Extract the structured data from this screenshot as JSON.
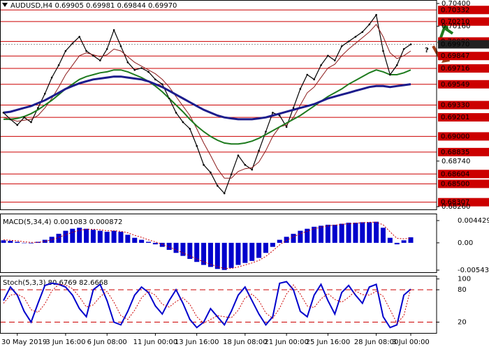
{
  "chart_data": [
    {
      "type": "line",
      "title": "AUDUSD,H4  0.69905 0.69981 0.69844 0.69970",
      "categories": [
        null,
        null,
        "30 May 2019",
        null,
        null,
        null,
        null,
        null,
        null,
        "3 Jun 16:00",
        null,
        null,
        null,
        null,
        null,
        "6 Jun 08:00",
        null,
        null,
        null,
        null,
        null,
        null,
        "11 Jun 00:00",
        null,
        null,
        null,
        null,
        null,
        "13 Jun 16:00",
        null,
        null,
        null,
        null,
        null,
        null,
        "18 Jun 08:00",
        null,
        null,
        null,
        null,
        null,
        "21 Jun 00:00",
        null,
        null,
        null,
        null,
        null,
        "25 Jun 16:00",
        null,
        null,
        null,
        null,
        null,
        null,
        "28 Jun 08:00",
        null,
        null,
        null,
        null,
        "3 Jul 00:00"
      ],
      "ylim": [
        0.68231,
        0.70437
      ],
      "yticks": [
        {
          "value": 0.704,
          "label": "0.70400"
        },
        {
          "value": 0.7016,
          "label": "0.70160"
        },
        {
          "value": 0.6874,
          "label": "0.68740"
        },
        {
          "value": 0.6826,
          "label": "0.68260"
        }
      ],
      "levels": [
        {
          "value": 0.70332,
          "label": "0.70332"
        },
        {
          "value": 0.7021,
          "label": "0.70210"
        },
        {
          "value": 0.7,
          "label": "0.70000"
        },
        {
          "value": 0.69847,
          "label": "0.69847"
        },
        {
          "value": 0.69716,
          "label": "0.69716"
        },
        {
          "value": 0.69549,
          "label": "0.69549"
        },
        {
          "value": 0.6933,
          "label": "0.69330"
        },
        {
          "value": 0.69201,
          "label": "0.69201"
        },
        {
          "value": 0.69,
          "label": "0.69000"
        },
        {
          "value": 0.68835,
          "label": "0.68835"
        },
        {
          "value": 0.68604,
          "label": "0.68604"
        },
        {
          "value": 0.685,
          "label": "0.68500"
        },
        {
          "value": 0.68307,
          "label": "0.68307"
        }
      ],
      "level_color": "#cc0000",
      "last_price": {
        "value": 0.6997,
        "label": "0.69970"
      },
      "annotations": [
        "?"
      ],
      "series": [
        {
          "color": "#000000",
          "values": [
            0.6925,
            0.6918,
            0.6912,
            0.692,
            0.6915,
            0.693,
            0.6945,
            0.6962,
            0.6975,
            0.699,
            0.6998,
            0.7005,
            0.699,
            0.6985,
            0.698,
            0.6992,
            0.7012,
            0.6995,
            0.6978,
            0.697,
            0.6972,
            0.6968,
            0.696,
            0.6955,
            0.694,
            0.6925,
            0.6915,
            0.6908,
            0.689,
            0.687,
            0.6862,
            0.6848,
            0.684,
            0.686,
            0.688,
            0.687,
            0.6865,
            0.6885,
            0.6905,
            0.6925,
            0.6922,
            0.691,
            0.693,
            0.695,
            0.6965,
            0.696,
            0.6975,
            0.6985,
            0.698,
            0.6995,
            0.7,
            0.7005,
            0.701,
            0.7018,
            0.7028,
            0.699,
            0.6965,
            0.6975,
            0.6992,
            0.6997
          ]
        },
        {
          "color": "#8b1a1a",
          "values": [
            0.692,
            0.6918,
            0.6916,
            0.6917,
            0.6918,
            0.6922,
            0.693,
            0.694,
            0.6952,
            0.6965,
            0.6975,
            0.6985,
            0.6988,
            0.6986,
            0.6984,
            0.6986,
            0.6992,
            0.699,
            0.6984,
            0.6978,
            0.6974,
            0.697,
            0.6966,
            0.696,
            0.6952,
            0.6942,
            0.6932,
            0.6922,
            0.6908,
            0.6893,
            0.688,
            0.6866,
            0.6856,
            0.6856,
            0.6863,
            0.6866,
            0.6867,
            0.6873,
            0.6885,
            0.69,
            0.691,
            0.6912,
            0.692,
            0.6933,
            0.6946,
            0.6952,
            0.6962,
            0.6972,
            0.6976,
            0.6985,
            0.6992,
            0.6998,
            0.7004,
            0.701,
            0.7018,
            0.7005,
            0.6988,
            0.6982,
            0.6985,
            0.699
          ]
        },
        {
          "color": "#1e7b1e",
          "values": [
            0.6918,
            0.6918,
            0.6919,
            0.6921,
            0.6924,
            0.6928,
            0.6933,
            0.6938,
            0.6944,
            0.695,
            0.6955,
            0.696,
            0.6963,
            0.6965,
            0.6967,
            0.6968,
            0.697,
            0.697,
            0.6968,
            0.6965,
            0.6962,
            0.6958,
            0.6953,
            0.6947,
            0.694,
            0.6933,
            0.6926,
            0.6918,
            0.6911,
            0.6905,
            0.69,
            0.6896,
            0.6893,
            0.6892,
            0.6892,
            0.6893,
            0.6895,
            0.6898,
            0.6902,
            0.6906,
            0.691,
            0.6914,
            0.6918,
            0.6922,
            0.6927,
            0.6932,
            0.6937,
            0.6942,
            0.6946,
            0.695,
            0.6955,
            0.6959,
            0.6963,
            0.6967,
            0.697,
            0.6968,
            0.6965,
            0.6965,
            0.6967,
            0.697
          ]
        },
        {
          "color": "#1c1c8c",
          "values": [
            0.6925,
            0.6926,
            0.6928,
            0.693,
            0.6932,
            0.6935,
            0.6938,
            0.6942,
            0.6946,
            0.695,
            0.6953,
            0.6956,
            0.6958,
            0.696,
            0.6961,
            0.6962,
            0.6963,
            0.6963,
            0.6962,
            0.6961,
            0.696,
            0.6958,
            0.6955,
            0.6952,
            0.6948,
            0.6944,
            0.694,
            0.6936,
            0.6932,
            0.6928,
            0.6925,
            0.6922,
            0.692,
            0.6919,
            0.6918,
            0.6918,
            0.6918,
            0.6919,
            0.692,
            0.6922,
            0.6924,
            0.6926,
            0.6928,
            0.693,
            0.6932,
            0.6934,
            0.6937,
            0.694,
            0.6942,
            0.6944,
            0.6946,
            0.6948,
            0.695,
            0.6952,
            0.6953,
            0.6953,
            0.6952,
            0.6953,
            0.6954,
            0.6955
          ]
        }
      ]
    },
    {
      "type": "macd",
      "title": "MACD(5,34,4) 0.001083 0.000872",
      "ylim": [
        -0.00585,
        0.00582
      ],
      "yticks": [
        0.004429,
        {
          "value": 0,
          "label": "0.00"
        },
        -0.005432
      ],
      "series": [
        {
          "color": "#0000cc",
          "values": [
            0.0005,
            0.0004,
            0.0002,
            0,
            -0.0001,
            0.0002,
            0.0006,
            0.0012,
            0.0018,
            0.0024,
            0.0028,
            0.003,
            0.0028,
            0.0026,
            0.0024,
            0.0022,
            0.0024,
            0.0022,
            0.0016,
            0.001,
            0.0006,
            0.0002,
            -0.0003,
            -0.0008,
            -0.0014,
            -0.002,
            -0.0026,
            -0.0032,
            -0.0038,
            -0.0044,
            -0.0048,
            -0.0052,
            -0.0054,
            -0.005,
            -0.0044,
            -0.004,
            -0.0036,
            -0.003,
            -0.002,
            -0.0008,
            0.0006,
            0.0012,
            0.0018,
            0.0024,
            0.0028,
            0.0032,
            0.0034,
            0.0036,
            0.0036,
            0.0038,
            0.004,
            0.004,
            0.0041,
            0.0041,
            0.0042,
            0.003,
            0.001,
            -0.0003,
            0.0005,
            0.0011
          ]
        },
        {
          "color": "#cc0000",
          "values": [
            0.0006,
            0.0005,
            0.0004,
            0.0002,
            0.0001,
            0.0001,
            0.0003,
            0.0006,
            0.0011,
            0.0016,
            0.0021,
            0.0025,
            0.0027,
            0.0027,
            0.0026,
            0.0024,
            0.0024,
            0.0023,
            0.002,
            0.0015,
            0.0011,
            0.0006,
            0.0002,
            -0.0003,
            -0.0008,
            -0.0014,
            -0.002,
            -0.0026,
            -0.0032,
            -0.0038,
            -0.0043,
            -0.0047,
            -0.0051,
            -0.0051,
            -0.0048,
            -0.0044,
            -0.004,
            -0.0035,
            -0.0027,
            -0.0016,
            -0.0004,
            0.0005,
            0.0012,
            0.0018,
            0.0023,
            0.0028,
            0.0031,
            0.0034,
            0.0035,
            0.0037,
            0.0038,
            0.0039,
            0.004,
            0.0041,
            0.0041,
            0.0036,
            0.0022,
            0.0009,
            0.0008,
            0.0009
          ]
        }
      ]
    },
    {
      "type": "stoch",
      "title": "Stoch(5,3,3) 80.6769 82.6668",
      "ylim": [
        0,
        106
      ],
      "yticks": [
        100,
        80,
        20
      ],
      "levels": [
        80,
        20
      ],
      "series": [
        {
          "color": "#0000cc",
          "values": [
            60,
            85,
            70,
            40,
            20,
            55,
            88,
            92,
            90,
            85,
            70,
            45,
            30,
            80,
            90,
            60,
            20,
            15,
            40,
            70,
            85,
            75,
            50,
            35,
            60,
            80,
            55,
            25,
            10,
            20,
            45,
            30,
            15,
            40,
            70,
            85,
            60,
            35,
            15,
            30,
            92,
            95,
            80,
            40,
            30,
            70,
            90,
            60,
            35,
            75,
            88,
            70,
            55,
            85,
            90,
            30,
            10,
            15,
            70,
            81
          ]
        },
        {
          "color": "#cc0000",
          "values": [
            55,
            70,
            72,
            65,
            43,
            38,
            54,
            78,
            90,
            89,
            82,
            67,
            48,
            52,
            67,
            77,
            57,
            32,
            25,
            42,
            65,
            77,
            70,
            53,
            48,
            58,
            65,
            53,
            30,
            18,
            25,
            32,
            30,
            28,
            42,
            65,
            72,
            60,
            37,
            27,
            46,
            72,
            89,
            72,
            50,
            47,
            63,
            73,
            62,
            57,
            66,
            78,
            71,
            70,
            77,
            68,
            43,
            18,
            32,
            83
          ]
        }
      ]
    }
  ]
}
